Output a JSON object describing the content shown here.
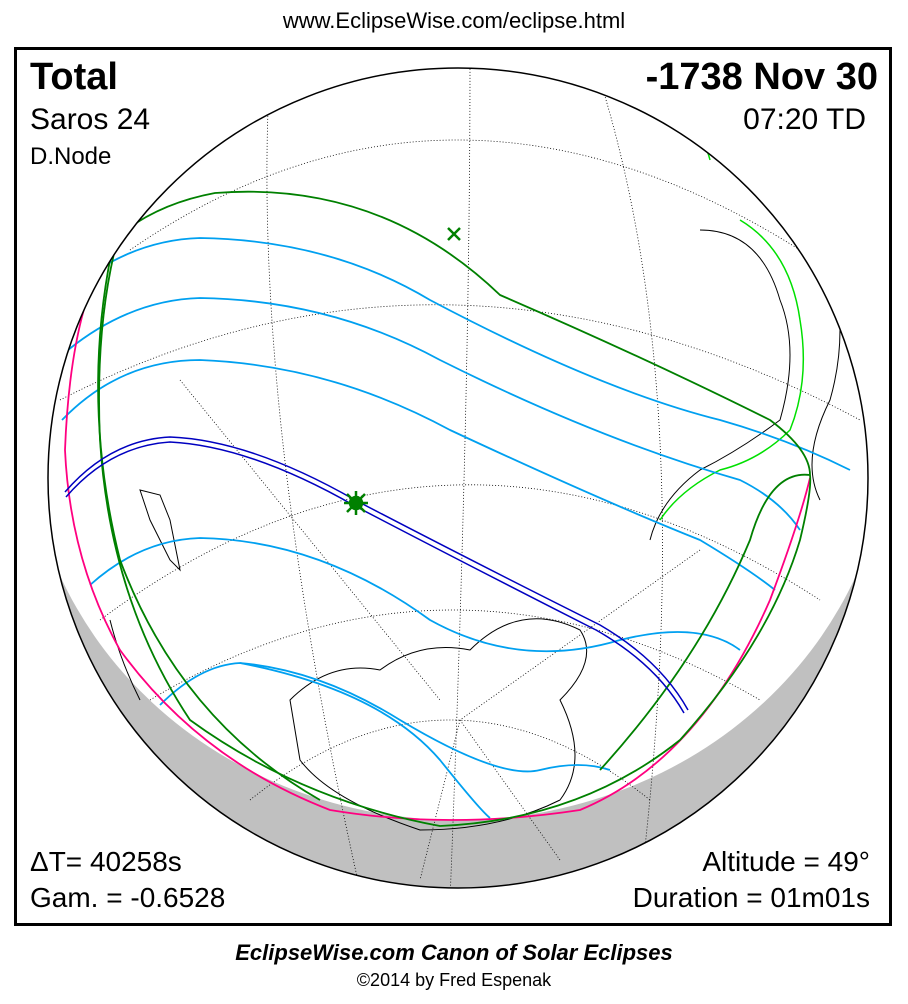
{
  "header": {
    "url": "www.EclipseWise.com/eclipse.html"
  },
  "eclipse": {
    "type": "Total",
    "date": "-1738 Nov 30",
    "saros": "Saros  24",
    "time": "07:20 TD",
    "node": "D.Node",
    "delta_t": "ΔT=  40258s",
    "gamma": "Gam. = -0.6528",
    "altitude": "Altitude = 49°",
    "duration": "Duration = 01m01s"
  },
  "footer": {
    "title": "EclipseWise.com Canon of Solar Eclipses",
    "copyright": "©2014 by Fred Espenak"
  },
  "colors": {
    "central_path": "#0000c0",
    "penumbral_limits": "#00a0f0",
    "outer_limits": "#008000",
    "rise_set": "#ff0080",
    "night": "#c0c0c0",
    "land_highlight": "#00e000"
  },
  "markers": {
    "greatest_eclipse": "star-icon",
    "subsolar_point": "x-icon"
  }
}
